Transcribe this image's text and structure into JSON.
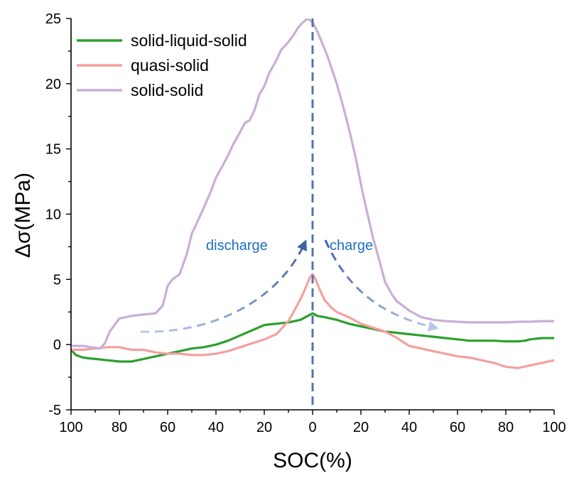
{
  "chart_data": {
    "type": "line",
    "xlabel": "SOC(%)",
    "ylabel": "Δσ(MPa)",
    "x_ticks": [
      "100",
      "80",
      "60",
      "40",
      "20",
      "0",
      "20",
      "40",
      "60",
      "80",
      "100"
    ],
    "y_ticks": [
      "-5",
      "0",
      "5",
      "10",
      "15",
      "20",
      "25"
    ],
    "x_position_range": [
      -100,
      100
    ],
    "x_note": "left half is discharge (SOC 100→0), right half is charge (SOC 0→100); x values are signed positions: negative = discharge side",
    "ylim": [
      -5,
      25
    ],
    "grid": false,
    "legend_position": "top-left",
    "series": [
      {
        "name": "solid-liquid-solid",
        "color": "#2ca02c",
        "x": [
          -100,
          -98,
          -95,
          -90,
          -85,
          -80,
          -75,
          -70,
          -65,
          -60,
          -55,
          -50,
          -45,
          -40,
          -35,
          -30,
          -25,
          -20,
          -15,
          -10,
          -5,
          -2,
          0,
          2,
          5,
          10,
          15,
          20,
          25,
          30,
          35,
          40,
          45,
          50,
          55,
          60,
          65,
          70,
          75,
          80,
          85,
          88,
          90,
          95,
          100
        ],
        "y": [
          -0.4,
          -0.8,
          -1.0,
          -1.1,
          -1.2,
          -1.3,
          -1.3,
          -1.1,
          -0.9,
          -0.7,
          -0.5,
          -0.3,
          -0.2,
          0.0,
          0.3,
          0.7,
          1.1,
          1.5,
          1.6,
          1.7,
          1.9,
          2.2,
          2.4,
          2.2,
          2.1,
          1.9,
          1.6,
          1.4,
          1.2,
          1.0,
          0.9,
          0.8,
          0.7,
          0.6,
          0.5,
          0.4,
          0.3,
          0.3,
          0.3,
          0.25,
          0.25,
          0.3,
          0.4,
          0.5,
          0.5
        ]
      },
      {
        "name": "quasi-solid",
        "color": "#f4a0a0",
        "x": [
          -100,
          -95,
          -90,
          -85,
          -80,
          -75,
          -70,
          -65,
          -60,
          -55,
          -50,
          -45,
          -40,
          -35,
          -30,
          -25,
          -20,
          -15,
          -10,
          -7,
          -5,
          -3,
          -1,
          0,
          1,
          3,
          5,
          8,
          10,
          15,
          20,
          25,
          30,
          35,
          40,
          45,
          50,
          55,
          60,
          65,
          70,
          75,
          80,
          85,
          90,
          95,
          100
        ],
        "y": [
          -0.4,
          -0.4,
          -0.3,
          -0.2,
          -0.2,
          -0.4,
          -0.4,
          -0.6,
          -0.7,
          -0.7,
          -0.8,
          -0.8,
          -0.7,
          -0.5,
          -0.2,
          0.1,
          0.4,
          0.8,
          1.8,
          2.8,
          3.5,
          4.3,
          5.2,
          5.4,
          5.1,
          4.2,
          3.4,
          2.8,
          2.5,
          2.1,
          1.6,
          1.3,
          1.0,
          0.5,
          -0.1,
          -0.3,
          -0.5,
          -0.7,
          -0.9,
          -1.0,
          -1.2,
          -1.4,
          -1.7,
          -1.8,
          -1.6,
          -1.4,
          -1.2
        ]
      },
      {
        "name": "solid-solid",
        "color": "#c9aed6",
        "x": [
          -100,
          -95,
          -92,
          -88,
          -86,
          -84,
          -80,
          -75,
          -70,
          -65,
          -62,
          -60,
          -58,
          -55,
          -52,
          -50,
          -47,
          -45,
          -42,
          -40,
          -37,
          -35,
          -33,
          -30,
          -28,
          -26,
          -24,
          -22,
          -20,
          -18,
          -15,
          -13,
          -10,
          -8,
          -6,
          -4,
          -2,
          0,
          2,
          4,
          6,
          8,
          10,
          12,
          14,
          16,
          18,
          20,
          22,
          25,
          28,
          30,
          33,
          35,
          38,
          40,
          43,
          45,
          50,
          55,
          60,
          65,
          70,
          75,
          80,
          85,
          90,
          95,
          100
        ],
        "y": [
          -0.1,
          -0.1,
          -0.2,
          -0.3,
          0.1,
          1.0,
          2.0,
          2.2,
          2.3,
          2.4,
          3.0,
          4.5,
          5.0,
          5.4,
          7.0,
          8.5,
          9.7,
          10.5,
          11.8,
          12.8,
          13.8,
          14.5,
          15.3,
          16.3,
          17.0,
          17.2,
          18.0,
          19.2,
          19.8,
          20.8,
          21.8,
          22.6,
          23.2,
          23.7,
          24.3,
          24.7,
          25.0,
          24.7,
          24.0,
          23.1,
          22.2,
          21.1,
          20.0,
          18.7,
          17.3,
          15.8,
          14.2,
          12.3,
          10.6,
          8.2,
          6.2,
          4.8,
          3.8,
          3.3,
          2.9,
          2.6,
          2.3,
          2.1,
          1.9,
          1.8,
          1.75,
          1.7,
          1.7,
          1.7,
          1.7,
          1.75,
          1.75,
          1.8,
          1.8
        ]
      }
    ],
    "annotations": [
      {
        "text": "discharge",
        "color": "#1f6fbf"
      },
      {
        "text": "charge",
        "color": "#1f6fbf"
      }
    ],
    "center_line_color": "#5474a8",
    "arrow_colors": {
      "dark": "#3f62a0",
      "light": "#b7c9ea"
    }
  }
}
